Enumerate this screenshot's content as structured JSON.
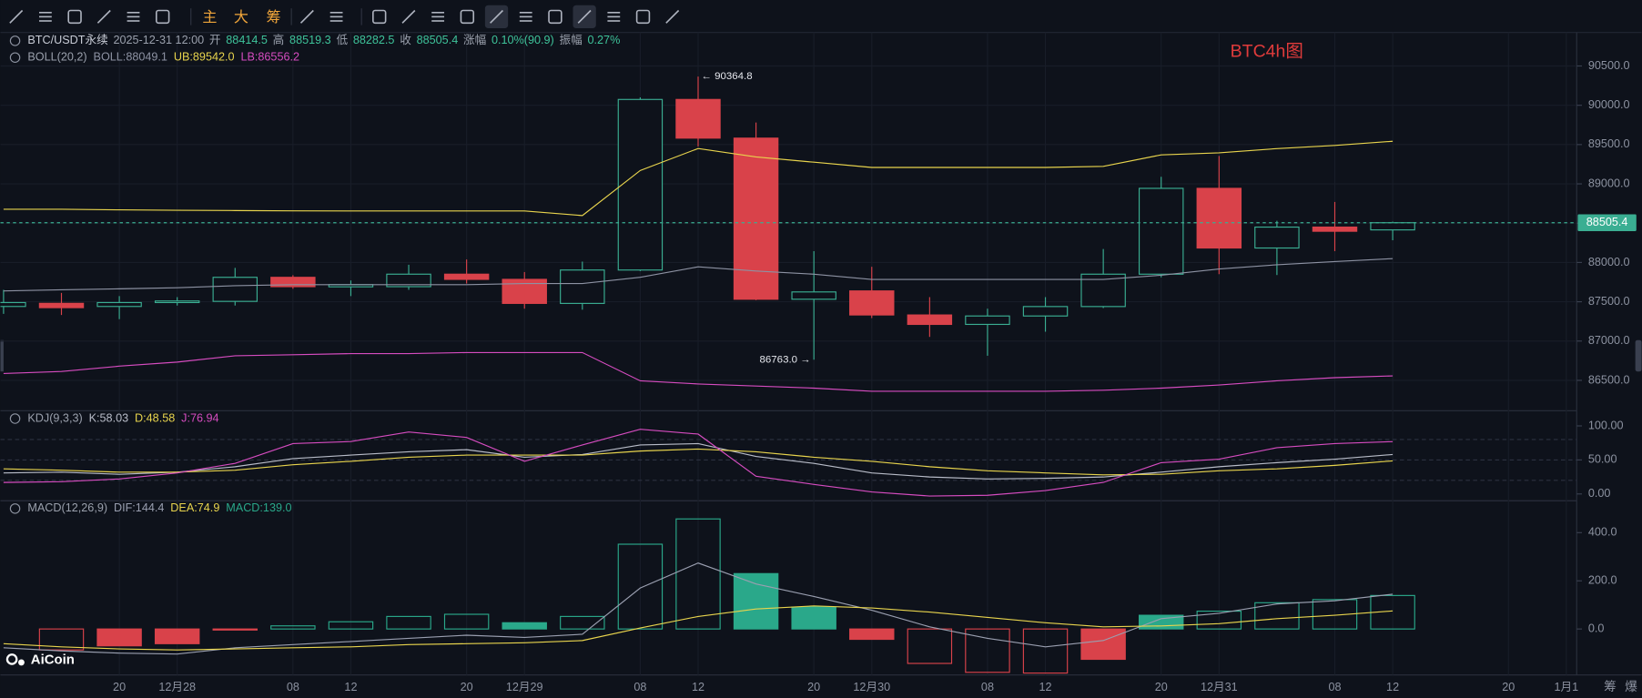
{
  "toolbar": {
    "buttons": [
      "主",
      "大",
      "筹"
    ]
  },
  "side_buttons": [
    "筹",
    "爆"
  ],
  "watermark": "AiCoin",
  "chart_data": [
    {
      "type": "candlestick",
      "title": "BTC4h图",
      "symbol": "BTC/USDT永续",
      "time": "2025-12-31 12:00",
      "info_labels": [
        "开",
        "高",
        "低",
        "收",
        "涨幅",
        "振幅"
      ],
      "change": "0.10%(90.9)",
      "amplitude": "0.27%",
      "indicator": "BOLL(20,2)",
      "legend_labels": [
        "BOLL:88049.1",
        "UB:89542.0",
        "LB:86556.2"
      ],
      "categories": [
        null,
        null,
        "20",
        "12月28",
        null,
        "08",
        "12",
        null,
        "20",
        "12月29",
        null,
        "08",
        "12",
        null,
        "20",
        "12月30",
        null,
        "08",
        "12",
        null,
        "20",
        "12月31",
        null,
        "08",
        "12",
        null,
        "20",
        "1月1"
      ],
      "open": [
        87440,
        87480,
        87440,
        87490,
        87505,
        87811,
        87690,
        87692,
        87851,
        87785,
        87479,
        87904,
        90074,
        89582,
        87532,
        87638,
        87332,
        87212,
        87319,
        87439,
        87851,
        88943,
        88184,
        88450,
        88414.5,
        null,
        null,
        null
      ],
      "high": [
        87652,
        87612,
        87572,
        87559,
        87931,
        87838,
        87771,
        87971,
        88038,
        87878,
        88011,
        90101,
        90364.8,
        89781,
        88144,
        87945,
        87559,
        87412,
        87559,
        88171,
        89090,
        89355,
        88530,
        88770,
        88519.3,
        null,
        null,
        null
      ],
      "low": [
        87346,
        87332,
        87279,
        87452,
        87452,
        87665,
        87572,
        87652,
        87732,
        87412,
        87399,
        87890,
        89475,
        87520,
        86763,
        87292,
        87053,
        86813,
        87119,
        87420,
        87811,
        87851,
        87840,
        88144,
        88282.5,
        null,
        null,
        null
      ],
      "close": [
        87490,
        87425,
        87490,
        87510,
        87811,
        87692,
        87718,
        87851,
        87785,
        87479,
        87904,
        90074,
        89582,
        87532,
        87625,
        87332,
        87212,
        87319,
        87439,
        87851,
        88943,
        88184,
        88450,
        88397,
        88505.4,
        null,
        null,
        null
      ],
      "up_color": "#3aae92",
      "down_color": "#d9424a",
      "series": [
        {
          "name": "BOLL",
          "color": "#8d92a3",
          "values": [
            87638,
            87652,
            87665,
            87678,
            87705,
            87718,
            87718,
            87718,
            87718,
            87732,
            87732,
            87811,
            87944,
            87891,
            87851,
            87785,
            87785,
            87785,
            87785,
            87785,
            87838,
            87918,
            87971,
            88011,
            88049.1,
            null,
            null,
            null
          ]
        },
        {
          "name": "UB",
          "color": "#e8d44d",
          "values": [
            88677,
            88677,
            88670,
            88665,
            88660,
            88657,
            88655,
            88655,
            88655,
            88655,
            88597,
            89170,
            89450,
            89342,
            89275,
            89209,
            89209,
            89209,
            89209,
            89222,
            89369,
            89395,
            89449,
            89489,
            89542.0,
            null,
            null,
            null
          ]
        },
        {
          "name": "LB",
          "color": "#d64cc0",
          "values": [
            86587,
            86613,
            86680,
            86733,
            86813,
            86826,
            86840,
            86840,
            86853,
            86853,
            86853,
            86494,
            86454,
            86427,
            86401,
            86361,
            86361,
            86361,
            86361,
            86374,
            86401,
            86441,
            86494,
            86534,
            86556.2,
            null,
            null,
            null
          ]
        }
      ],
      "annotations": [
        {
          "value": 90364.8,
          "label": "← 90364.8"
        },
        {
          "value": 86763,
          "label": "86763.0 →"
        }
      ],
      "last_price": {
        "value": 88505.4,
        "label": "88505.4"
      },
      "ylim": [
        86120,
        90940
      ],
      "yticks": [
        {
          "value": 86500,
          "label": "86500.0"
        },
        {
          "value": 87000,
          "label": "87000.0"
        },
        {
          "value": 87500,
          "label": "87500.0"
        },
        {
          "value": 88000,
          "label": "88000.0"
        },
        {
          "value": 88500,
          "label": "88500.0"
        },
        {
          "value": 89000,
          "label": "89000.0"
        },
        {
          "value": 89500,
          "label": "89500.0"
        },
        {
          "value": 90000,
          "label": "90000.0"
        },
        {
          "value": 90500,
          "label": "90500.0"
        }
      ],
      "grid": true
    },
    {
      "type": "line",
      "indicator": "KDJ(9,3,3)",
      "legend_labels": [
        "K:58.03",
        "D:48.58",
        "J:76.94"
      ],
      "series": [
        {
          "name": "K",
          "color": "#b8bcc8",
          "values": [
            31,
            32,
            29,
            32,
            40,
            52,
            57,
            62,
            65,
            54,
            58,
            72,
            74,
            55,
            45,
            31,
            25,
            22,
            23,
            25,
            32,
            40,
            46,
            51,
            58.03,
            null,
            null,
            null
          ]
        },
        {
          "name": "D",
          "color": "#e8d44d",
          "values": [
            37,
            35,
            32,
            32,
            35,
            43,
            48,
            54,
            57,
            57,
            57,
            63,
            66,
            62,
            54,
            48,
            40,
            34,
            31,
            28,
            29,
            34,
            37,
            42,
            48.58,
            null,
            null,
            null
          ]
        },
        {
          "name": "J",
          "color": "#d64cc0",
          "values": [
            17,
            18,
            22,
            31,
            45,
            74,
            77,
            91,
            83,
            48,
            72,
            95,
            88,
            26,
            14,
            3,
            -3,
            -2,
            5,
            17,
            46,
            51,
            68,
            74,
            76.94,
            null,
            null,
            null
          ]
        }
      ],
      "levels": [
        20,
        50,
        80
      ],
      "ylim": [
        -9.2,
        121.5
      ],
      "yticks": [
        {
          "value": 0,
          "label": "0.00"
        },
        {
          "value": 50,
          "label": "50.00"
        },
        {
          "value": 100,
          "label": "100.00"
        }
      ]
    },
    {
      "type": "bar",
      "indicator": "MACD(12,26,9)",
      "legend_labels": [
        "DIF:144.4",
        "DEA:74.9",
        "MACD:139.0"
      ],
      "series": [
        {
          "name": "DIF",
          "color": "#9a9fb0",
          "values": [
            -78,
            -91,
            -100,
            -104,
            -78,
            -65,
            -52,
            -39,
            -26,
            -35,
            -22,
            170,
            274,
            187,
            135,
            78,
            9,
            -39,
            -74,
            -48,
            43,
            65,
            104,
            117,
            144.4,
            null,
            null,
            null
          ]
        },
        {
          "name": "DEA",
          "color": "#e8d44d",
          "values": [
            -61,
            -74,
            -83,
            -87,
            -83,
            -78,
            -74,
            -65,
            -61,
            -57,
            -48,
            4,
            52,
            83,
            96,
            87,
            70,
            48,
            26,
            9,
            13,
            22,
            43,
            57,
            74.9,
            null,
            null,
            null
          ]
        }
      ],
      "histogram": {
        "name": "MACD",
        "up_color": "#2aa88a",
        "down_color": "#d9424a",
        "values": [
          null,
          -87,
          -70,
          -61,
          -4,
          13,
          30,
          52,
          61,
          26,
          52,
          352,
          457,
          230,
          91,
          -43,
          -143,
          -180,
          -183,
          -126,
          57,
          74,
          109,
          122,
          139.0,
          null,
          null,
          null
        ]
      },
      "ylim": [
        -191,
        526
      ],
      "yticks": [
        {
          "value": 0,
          "label": "0.0"
        },
        {
          "value": 200,
          "label": "200.0"
        },
        {
          "value": 400,
          "label": "400.0"
        }
      ]
    }
  ]
}
